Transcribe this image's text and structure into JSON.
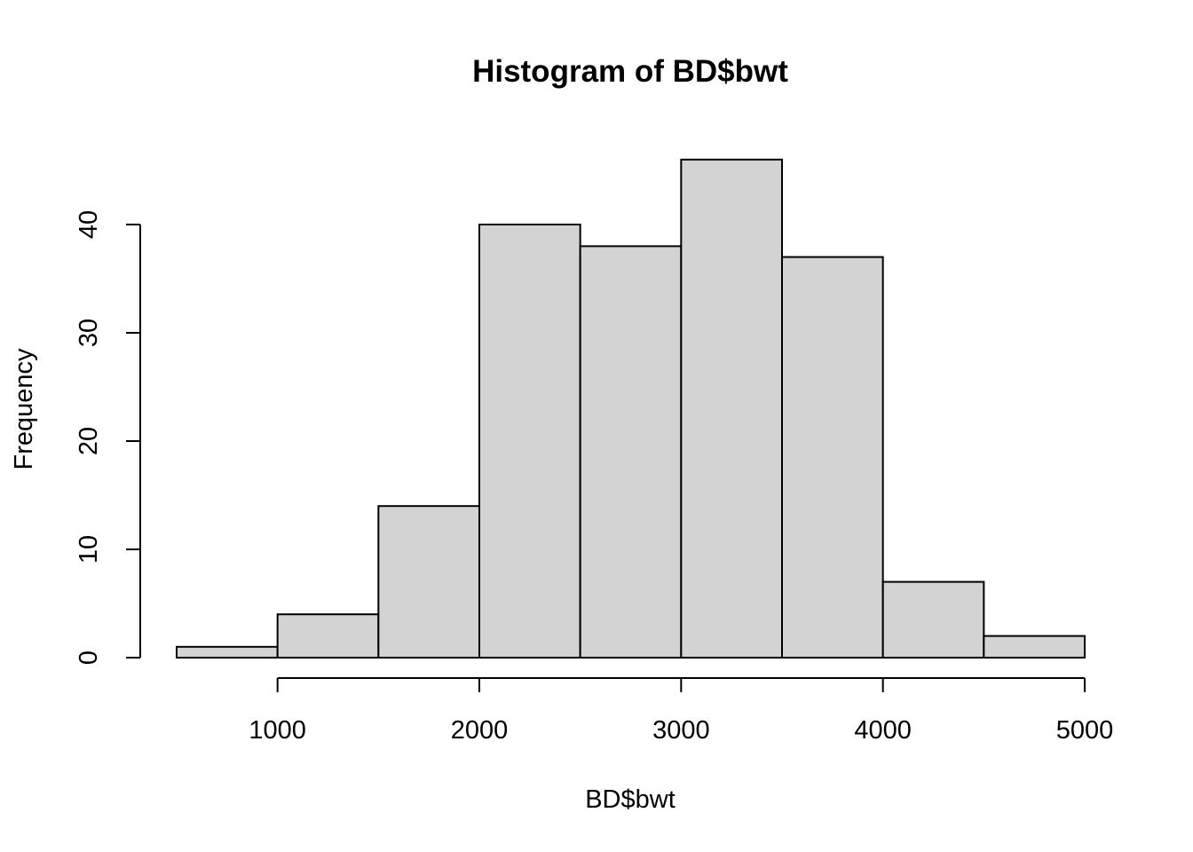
{
  "chart_data": {
    "type": "bar",
    "title": "Histogram of BD$bwt",
    "xlabel": "BD$bwt",
    "ylabel": "Frequency",
    "bins": [
      {
        "start": 500,
        "end": 1000,
        "count": 1
      },
      {
        "start": 1000,
        "end": 1500,
        "count": 4
      },
      {
        "start": 1500,
        "end": 2000,
        "count": 14
      },
      {
        "start": 2000,
        "end": 2500,
        "count": 40
      },
      {
        "start": 2500,
        "end": 3000,
        "count": 38
      },
      {
        "start": 3000,
        "end": 3500,
        "count": 46
      },
      {
        "start": 3500,
        "end": 4000,
        "count": 37
      },
      {
        "start": 4000,
        "end": 4500,
        "count": 7
      },
      {
        "start": 4500,
        "end": 5000,
        "count": 2
      }
    ],
    "xticks": [
      "1000",
      "2000",
      "3000",
      "4000",
      "5000"
    ],
    "yticks": [
      "0",
      "10",
      "20",
      "30",
      "40"
    ],
    "xlim": [
      500,
      5000
    ],
    "ylim": [
      0,
      46
    ],
    "bar_fill": "#d3d3d3",
    "bar_stroke": "#000000",
    "grid": false,
    "legend": "none"
  }
}
